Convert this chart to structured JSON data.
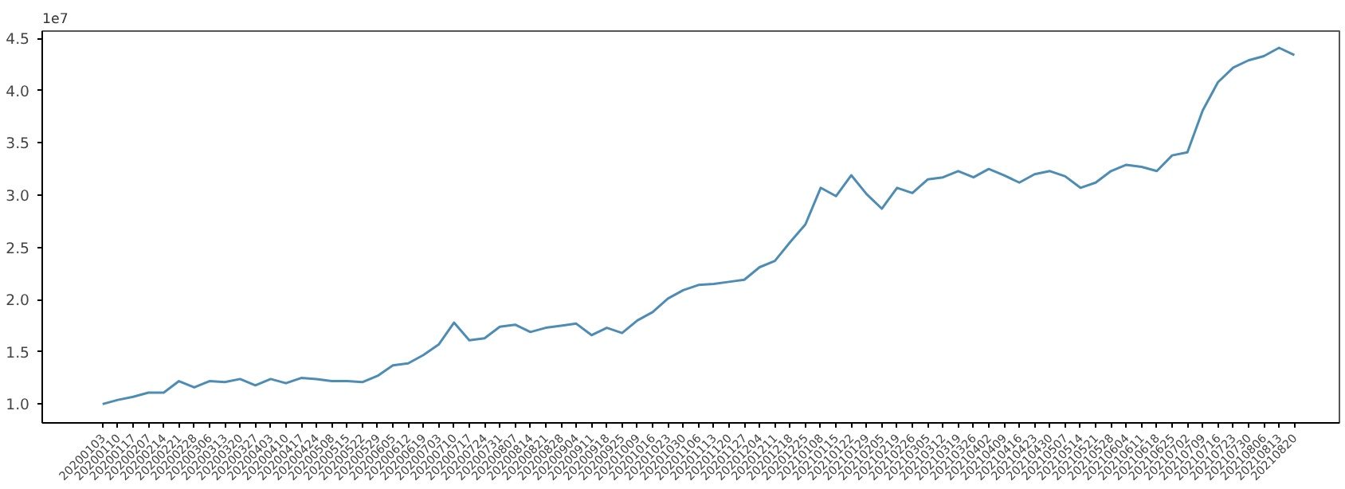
{
  "chart_data": {
    "type": "line",
    "categories": [
      "20200103",
      "20200110",
      "20200117",
      "20200207",
      "20200214",
      "20200221",
      "20200228",
      "20200306",
      "20200313",
      "20200320",
      "20200327",
      "20200403",
      "20200410",
      "20200417",
      "20200424",
      "20200508",
      "20200515",
      "20200522",
      "20200529",
      "20200605",
      "20200612",
      "20200619",
      "20200703",
      "20200710",
      "20200717",
      "20200724",
      "20200731",
      "20200807",
      "20200814",
      "20200821",
      "20200828",
      "20200904",
      "20200911",
      "20200918",
      "20200925",
      "20201009",
      "20201016",
      "20201023",
      "20201030",
      "20201106",
      "20201113",
      "20201120",
      "20201127",
      "20201204",
      "20201211",
      "20201218",
      "20201225",
      "20210108",
      "20210115",
      "20210122",
      "20210129",
      "20210205",
      "20210219",
      "20210226",
      "20210305",
      "20210312",
      "20210319",
      "20210326",
      "20210402",
      "20210409",
      "20210416",
      "20210423",
      "20210430",
      "20210507",
      "20210514",
      "20210521",
      "20210528",
      "20210604",
      "20210611",
      "20210618",
      "20210625",
      "20210702",
      "20210709",
      "20210716",
      "20210723",
      "20210730",
      "20210806",
      "20210813",
      "20210820"
    ],
    "series": [
      {
        "color": "#4c8cb5",
        "values": [
          1.0,
          1.04,
          1.07,
          1.11,
          1.11,
          1.22,
          1.16,
          1.22,
          1.21,
          1.24,
          1.18,
          1.24,
          1.2,
          1.25,
          1.24,
          1.22,
          1.22,
          1.21,
          1.27,
          1.37,
          1.39,
          1.47,
          1.57,
          1.78,
          1.61,
          1.63,
          1.74,
          1.76,
          1.69,
          1.73,
          1.75,
          1.77,
          1.66,
          1.73,
          1.68,
          1.8,
          1.88,
          2.01,
          2.09,
          2.14,
          2.15,
          2.17,
          2.19,
          2.31,
          2.37,
          2.55,
          2.72,
          3.07,
          2.99,
          3.19,
          3.01,
          2.87,
          3.07,
          3.02,
          3.15,
          3.17,
          3.23,
          3.17,
          3.25,
          3.19,
          3.12,
          3.2,
          3.23,
          3.18,
          3.07,
          3.12,
          3.23,
          3.29,
          3.27,
          3.23,
          3.38,
          3.41,
          3.81,
          4.08,
          4.22,
          4.29,
          4.33,
          4.41,
          4.34
        ]
      }
    ],
    "ylim": [
      0.82,
      4.57
    ],
    "yticks": [
      {
        "value": 1.0,
        "label": "1.0"
      },
      {
        "value": 1.5,
        "label": "1.5"
      },
      {
        "value": 2.0,
        "label": "2.0"
      },
      {
        "value": 2.5,
        "label": "2.5"
      },
      {
        "value": 3.0,
        "label": "3.0"
      },
      {
        "value": 3.5,
        "label": "3.5"
      },
      {
        "value": 4.0,
        "label": "4.0"
      },
      {
        "value": 4.5,
        "label": "4.5"
      }
    ],
    "annotations": [
      "1e7"
    ],
    "grid": false,
    "marker": "none",
    "line_style": "solid"
  }
}
